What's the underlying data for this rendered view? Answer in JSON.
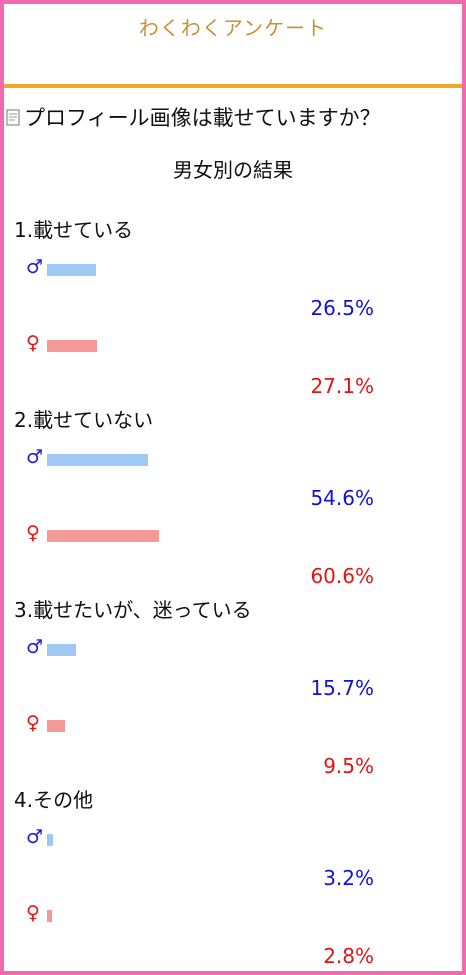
{
  "header": {
    "title": "わくわくアンケート"
  },
  "question": {
    "text": "プロフィール画像は載せていますか？",
    "icon": "document-icon"
  },
  "subtitle": "男女別の結果",
  "symbols": {
    "male": "♂",
    "female": "♀"
  },
  "colors": {
    "male_bar": "#9fc8f5",
    "female_bar": "#f59898",
    "male_text": "#1212d8",
    "female_text": "#e01515",
    "border": "#f06aae",
    "divider": "#f5a623",
    "title": "#c8913a"
  },
  "results": [
    {
      "label": "1.載せている",
      "male_pct": "26.5%",
      "female_pct": "27.1%",
      "male_value": 26.5,
      "female_value": 27.1
    },
    {
      "label": "2.載せていない",
      "male_pct": "54.6%",
      "female_pct": "60.6%",
      "male_value": 54.6,
      "female_value": 60.6
    },
    {
      "label": "3.載せたいが、迷っている",
      "male_pct": "15.7%",
      "female_pct": "9.5%",
      "male_value": 15.7,
      "female_value": 9.5
    },
    {
      "label": "4.その他",
      "male_pct": "3.2%",
      "female_pct": "2.8%",
      "male_value": 3.2,
      "female_value": 2.8
    }
  ]
}
